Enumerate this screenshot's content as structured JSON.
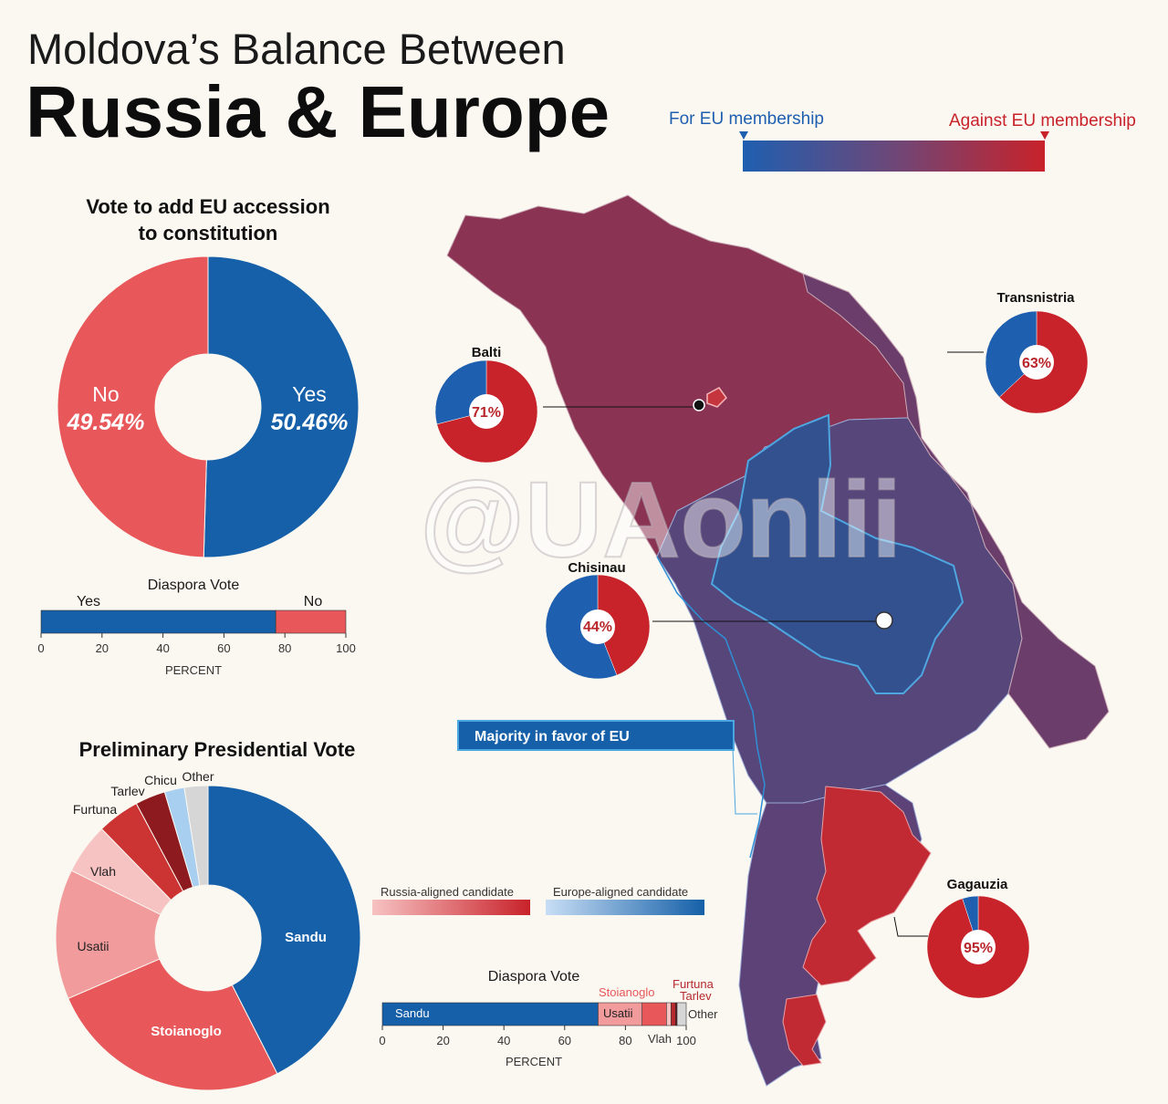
{
  "title": {
    "line1": "Moldova’s Balance Between",
    "line2": "Russia & Europe"
  },
  "legend": {
    "for_label": "For EU membership",
    "against_label": "Against EU membership",
    "colors": {
      "for": "#1f5fb0",
      "against": "#c8222a"
    }
  },
  "referendum": {
    "title_line1": "Vote to add EU accession",
    "title_line2": "to constitution",
    "yes_label": "Yes",
    "yes_pct": "50.46%",
    "no_label": "No",
    "no_pct": "49.54%"
  },
  "diaspora_ref": {
    "title": "Diaspora Vote",
    "yes_label": "Yes",
    "no_label": "No",
    "axis_label": "PERCENT",
    "ticks": [
      "0",
      "20",
      "40",
      "60",
      "80",
      "100"
    ]
  },
  "presidential": {
    "title": "Preliminary Presidential Vote",
    "labels": {
      "sandu": "Sandu",
      "stoianoglo": "Stoianoglo",
      "usatii": "Usatii",
      "vlah": "Vlah",
      "furtuna": "Furtuna",
      "tarlev": "Tarlev",
      "chicu": "Chicu",
      "other": "Other"
    }
  },
  "candidate_legend": {
    "russia": "Russia-aligned candidate",
    "europe": "Europe-aligned candidate"
  },
  "diaspora_pres": {
    "title": "Diaspora Vote",
    "sandu": "Sandu",
    "usatii": "Usatii",
    "stoianoglo": "Stoianoglo",
    "vlah": "Vlah",
    "furtuna": "Furtuna",
    "tarlev": "Tarlev",
    "other": "Other",
    "axis_label": "PERCENT",
    "ticks": [
      "0",
      "20",
      "40",
      "60",
      "80",
      "100"
    ]
  },
  "map": {
    "majority_label": "Majority in favor of EU",
    "regions": {
      "balti": {
        "name": "Balti",
        "pct": "71%"
      },
      "transnistria": {
        "name": "Transnistria",
        "pct": "63%"
      },
      "chisinau": {
        "name": "Chisinau",
        "pct": "44%"
      },
      "gagauzia": {
        "name": "Gagauzia",
        "pct": "95%"
      }
    }
  },
  "watermark": "@UAonlii",
  "chart_data": [
    {
      "type": "pie",
      "title": "Vote to add EU accession to constitution",
      "categories": [
        "Yes",
        "No"
      ],
      "values": [
        50.46,
        49.54
      ],
      "colors": [
        "#1560a8",
        "#e8575a"
      ]
    },
    {
      "type": "bar",
      "title": "Diaspora Vote",
      "xlabel": "PERCENT",
      "xlim": [
        0,
        100
      ],
      "categories": [
        "Yes",
        "No"
      ],
      "values": [
        77,
        23
      ],
      "colors": [
        "#1560a8",
        "#e8575a"
      ]
    },
    {
      "type": "pie",
      "title": "Preliminary Presidential Vote",
      "categories": [
        "Sandu",
        "Stoianoglo",
        "Usatii",
        "Vlah",
        "Furtuna",
        "Tarlev",
        "Chicu",
        "Other"
      ],
      "values": [
        42.5,
        26.0,
        13.8,
        5.4,
        4.5,
        3.2,
        2.1,
        2.5
      ],
      "colors": [
        "#1560a8",
        "#e8575a",
        "#f19b9c",
        "#f7c2c2",
        "#cc3333",
        "#8d1a1e",
        "#a9cff0",
        "#d6d6d6"
      ]
    },
    {
      "type": "bar",
      "title": "Diaspora Vote",
      "xlabel": "PERCENT",
      "xlim": [
        0,
        100
      ],
      "categories": [
        "Sandu",
        "Usatii",
        "Stoianoglo",
        "Vlah",
        "Furtuna",
        "Tarlev",
        "Other"
      ],
      "values": [
        71,
        14.5,
        8,
        1.5,
        1.5,
        0.5,
        3
      ],
      "colors": [
        "#1560a8",
        "#f19b9c",
        "#e8575a",
        "#f7c2c2",
        "#b62a2f",
        "#6e1216",
        "#d6d6d6"
      ]
    },
    {
      "type": "pie",
      "title": "Balti",
      "categories": [
        "Against",
        "For"
      ],
      "values": [
        71,
        29
      ],
      "colors": [
        "#c8222a",
        "#1f5fb0"
      ]
    },
    {
      "type": "pie",
      "title": "Transnistria",
      "categories": [
        "Against",
        "For"
      ],
      "values": [
        63,
        37
      ],
      "colors": [
        "#c8222a",
        "#1f5fb0"
      ]
    },
    {
      "type": "pie",
      "title": "Chisinau",
      "categories": [
        "Against",
        "For"
      ],
      "values": [
        44,
        56
      ],
      "colors": [
        "#c8222a",
        "#1f5fb0"
      ]
    },
    {
      "type": "pie",
      "title": "Gagauzia",
      "categories": [
        "Against",
        "For"
      ],
      "values": [
        95,
        5
      ],
      "colors": [
        "#c8222a",
        "#1f5fb0"
      ]
    }
  ]
}
